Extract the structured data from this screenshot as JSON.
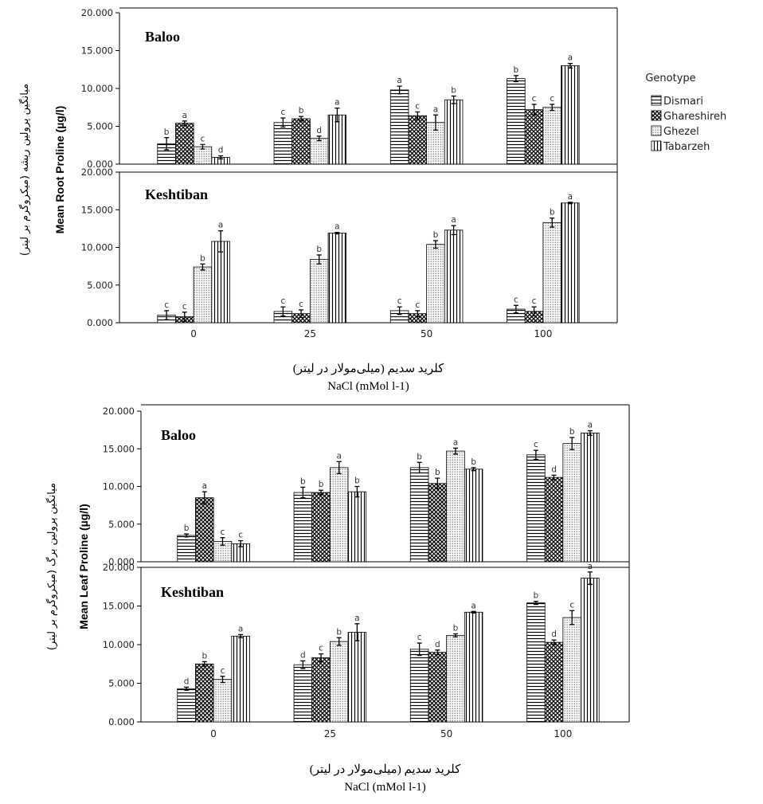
{
  "patterns": {
    "Dismari": "hlines",
    "Ghareshireh": "crosshatch",
    "Ghezel": "dots",
    "Tabarzeh": "vlines"
  },
  "legend": {
    "title": "Genotype",
    "items": [
      "Dismari",
      "Ghareshireh",
      "Ghezel",
      "Tabarzeh"
    ]
  },
  "chart_data": [
    {
      "type": "bar",
      "title": "",
      "ylabel": "Mean Root Proline (µg/l)",
      "ylabel_persian": "میانگین پرولین ریشه (میکروگرم بر لیتر)",
      "xlabel_persian": "کلرید سدیم (میلی‌مولار در لیتر)",
      "xlabel": "NaCl (mMol l-1)",
      "categories": [
        "0",
        "25",
        "50",
        "100"
      ],
      "yticks": [
        "0.000",
        "5.000",
        "10.000",
        "15.000",
        "20.000"
      ],
      "ylim": [
        0,
        20
      ],
      "panels": [
        {
          "name": "Baloo",
          "series": [
            {
              "name": "Dismari",
              "values": [
                2.7,
                5.5,
                9.8,
                11.3
              ],
              "errors": [
                0.8,
                0.6,
                0.5,
                0.4
              ],
              "letters": [
                "b",
                "c",
                "a",
                "b"
              ]
            },
            {
              "name": "Ghareshireh",
              "values": [
                5.4,
                6.0,
                6.4,
                7.2
              ],
              "errors": [
                0.3,
                0.3,
                0.5,
                0.7
              ],
              "letters": [
                "a",
                "b",
                "c",
                "c"
              ]
            },
            {
              "name": "Ghezel",
              "values": [
                2.3,
                3.4,
                5.5,
                7.5
              ],
              "errors": [
                0.3,
                0.3,
                1.0,
                0.4
              ],
              "letters": [
                "c",
                "d",
                "a",
                "c"
              ]
            },
            {
              "name": "Tabarzeh",
              "values": [
                0.9,
                6.5,
                8.5,
                13.0
              ],
              "errors": [
                0.2,
                0.9,
                0.5,
                0.3
              ],
              "letters": [
                "d",
                "a",
                "b",
                "a"
              ]
            }
          ]
        },
        {
          "name": "Keshtiban",
          "series": [
            {
              "name": "Dismari",
              "values": [
                1.0,
                1.5,
                1.6,
                1.8
              ],
              "errors": [
                0.6,
                0.6,
                0.5,
                0.5
              ],
              "letters": [
                "c",
                "c",
                "c",
                "c"
              ]
            },
            {
              "name": "Ghareshireh",
              "values": [
                0.8,
                1.2,
                1.2,
                1.5
              ],
              "errors": [
                0.6,
                0.5,
                0.4,
                0.6
              ],
              "letters": [
                "c",
                "c",
                "c",
                "c"
              ]
            },
            {
              "name": "Ghezel",
              "values": [
                7.4,
                8.4,
                10.4,
                13.3
              ],
              "errors": [
                0.4,
                0.6,
                0.5,
                0.6
              ],
              "letters": [
                "b",
                "b",
                "b",
                "b"
              ]
            },
            {
              "name": "Tabarzeh",
              "values": [
                10.8,
                11.9,
                12.3,
                15.9
              ],
              "errors": [
                1.4,
                0.1,
                0.6,
                0.1
              ],
              "letters": [
                "a",
                "a",
                "a",
                "a"
              ]
            }
          ]
        }
      ]
    },
    {
      "type": "bar",
      "title": "",
      "ylabel": "Mean Leaf Proline (µg/l)",
      "ylabel_persian": "میانگین پرولین برگ (میکروگرم بر لیتر)",
      "xlabel_persian": "کلرید سدیم (میلی‌مولار در لیتر)",
      "xlabel": "NaCl (mMol l-1)",
      "categories": [
        "0",
        "25",
        "50",
        "100"
      ],
      "yticks": [
        "0.000",
        "5.000",
        "10.000",
        "15.000",
        "20.000"
      ],
      "ylim": [
        0,
        20
      ],
      "panels": [
        {
          "name": "Baloo",
          "series": [
            {
              "name": "Dismari",
              "values": [
                3.5,
                9.2,
                12.5,
                14.2
              ],
              "errors": [
                0.2,
                0.7,
                0.7,
                0.6
              ],
              "letters": [
                "b",
                "b",
                "b",
                "c"
              ]
            },
            {
              "name": "Ghareshireh",
              "values": [
                8.5,
                9.2,
                10.4,
                11.2
              ],
              "errors": [
                0.8,
                0.3,
                0.7,
                0.3
              ],
              "letters": [
                "a",
                "b",
                "b",
                "d"
              ]
            },
            {
              "name": "Ghezel",
              "values": [
                2.7,
                12.5,
                14.7,
                15.7
              ],
              "errors": [
                0.5,
                0.8,
                0.4,
                0.8
              ],
              "letters": [
                "c",
                "a",
                "a",
                "b"
              ]
            },
            {
              "name": "Tabarzeh",
              "values": [
                2.4,
                9.3,
                12.3,
                17.1
              ],
              "errors": [
                0.4,
                0.7,
                0.2,
                0.3
              ],
              "letters": [
                "c",
                "b",
                "b",
                "a"
              ]
            }
          ]
        },
        {
          "name": "Keshtiban",
          "series": [
            {
              "name": "Dismari",
              "values": [
                4.3,
                7.4,
                9.4,
                15.4
              ],
              "errors": [
                0.2,
                0.5,
                0.8,
                0.2
              ],
              "letters": [
                "d",
                "d",
                "c",
                "b"
              ]
            },
            {
              "name": "Ghareshireh",
              "values": [
                7.5,
                8.3,
                9.0,
                10.3
              ],
              "errors": [
                0.3,
                0.5,
                0.3,
                0.3
              ],
              "letters": [
                "b",
                "c",
                "d",
                "d"
              ]
            },
            {
              "name": "Ghezel",
              "values": [
                5.5,
                10.4,
                11.2,
                13.5
              ],
              "errors": [
                0.4,
                0.5,
                0.2,
                0.9
              ],
              "letters": [
                "c",
                "b",
                "b",
                "c"
              ]
            },
            {
              "name": "Tabarzeh",
              "values": [
                11.1,
                11.6,
                14.2,
                18.6
              ],
              "errors": [
                0.2,
                1.1,
                0.1,
                0.8
              ],
              "letters": [
                "a",
                "a",
                "a",
                "a"
              ]
            }
          ]
        }
      ]
    }
  ]
}
